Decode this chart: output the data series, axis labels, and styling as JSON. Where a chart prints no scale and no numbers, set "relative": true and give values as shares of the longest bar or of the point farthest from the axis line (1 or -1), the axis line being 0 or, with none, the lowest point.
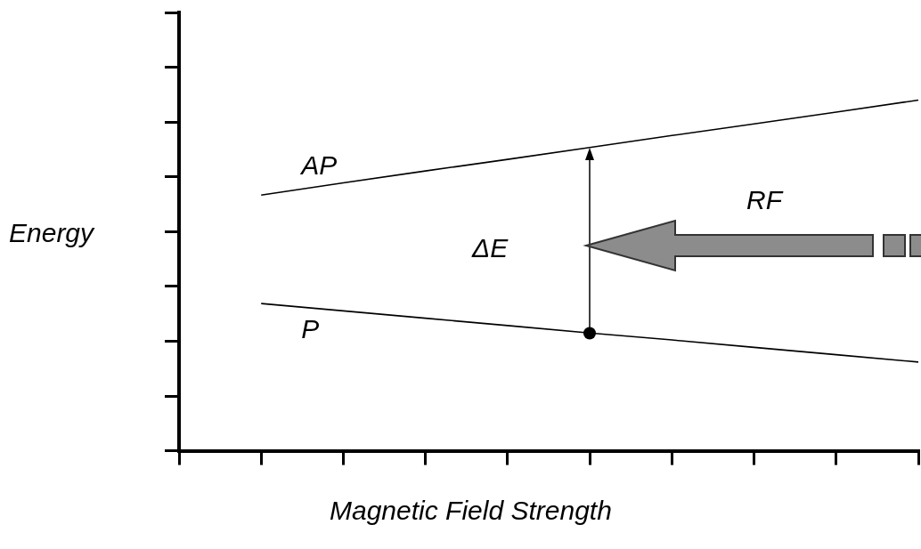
{
  "chart_data": {
    "type": "line",
    "relative": true,
    "xlabel": "Magnetic Field Strength",
    "ylabel": "Energy",
    "categories": [
      null,
      null,
      null,
      null,
      null,
      null,
      null,
      null,
      null,
      null
    ],
    "series": [
      {
        "name": "AP",
        "color": "#000000",
        "values": [
          null,
          0.729,
          0.764,
          0.798,
          0.831,
          0.865,
          0.899,
          0.932,
          0.966,
          1
        ]
      },
      {
        "name": "P",
        "color": "#000000",
        "values": [
          null,
          0.42,
          0.399,
          0.378,
          0.357,
          0.336,
          0.316,
          0.295,
          0.274,
          0.253
        ]
      }
    ],
    "annotations": [
      "ΔE",
      "RF"
    ],
    "grid": false,
    "legend": false,
    "line_style": "solid"
  }
}
